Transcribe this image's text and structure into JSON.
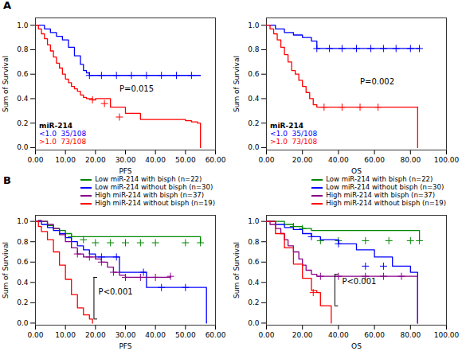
{
  "chart_data": [
    {
      "type": "line",
      "title": "A",
      "xlabel": "PFS",
      "ylabel": "Sum of Survival",
      "xlim": [
        0,
        60
      ],
      "ylim": [
        -0.02,
        1.06
      ],
      "xticks": [
        {
          "value": 0,
          "label": "0.00"
        },
        {
          "value": 10,
          "label": "10.00"
        },
        {
          "value": 20,
          "label": "20.00"
        },
        {
          "value": 30,
          "label": "30.00"
        },
        {
          "value": 40,
          "label": "40.00"
        },
        {
          "value": 50,
          "label": "50.00"
        },
        {
          "value": 60,
          "label": "60.00"
        }
      ],
      "yticks": [
        {
          "value": 0.0,
          "label": "0.0"
        },
        0.2,
        0.4,
        0.6,
        0.8,
        {
          "value": 1.0,
          "label": "1.0"
        }
      ],
      "line_style": "step",
      "legend": "lower left",
      "legend_title": "miR-214",
      "annotations": [
        {
          "text": "P=0.015",
          "x": 28,
          "y": 0.46
        }
      ],
      "series": [
        {
          "name": "<1.0  35/108",
          "color": "#0000ff",
          "marker": "plus",
          "x": [
            0,
            3,
            5,
            7,
            9,
            11,
            13,
            15,
            16,
            17,
            18,
            55
          ],
          "values": [
            1.0,
            0.97,
            0.94,
            0.91,
            0.88,
            0.82,
            0.75,
            0.68,
            0.63,
            0.61,
            0.59,
            0.59
          ],
          "censor_x": [
            18,
            22,
            27,
            32,
            37,
            42,
            47,
            52
          ],
          "censor_y": [
            0.59,
            0.59,
            0.59,
            0.59,
            0.59,
            0.59,
            0.59,
            0.59
          ]
        },
        {
          "name": ">1.0  73/108",
          "color": "#ff0000",
          "marker": "plus",
          "x": [
            0,
            1,
            2,
            3,
            4,
            5,
            6,
            7,
            8,
            9,
            10,
            11,
            12,
            13,
            14,
            15,
            16,
            17,
            18,
            19,
            20,
            25,
            30,
            35,
            40,
            50,
            52,
            54,
            55
          ],
          "values": [
            1.0,
            0.97,
            0.93,
            0.89,
            0.84,
            0.79,
            0.74,
            0.69,
            0.65,
            0.6,
            0.56,
            0.53,
            0.5,
            0.48,
            0.46,
            0.43,
            0.41,
            0.4,
            0.4,
            0.39,
            0.4,
            0.33,
            0.28,
            0.23,
            0.23,
            0.22,
            0.21,
            0.2,
            0.0
          ],
          "censor_x": [
            19,
            23,
            28
          ],
          "censor_y": [
            0.39,
            0.36,
            0.25
          ]
        }
      ]
    },
    {
      "type": "line",
      "xlabel": "OS",
      "ylabel": "Sum of Survival",
      "xlim": [
        0,
        100
      ],
      "ylim": [
        -0.02,
        1.06
      ],
      "xticks": [
        {
          "value": 0,
          "label": "0.00"
        },
        {
          "value": 20,
          "label": "20.00"
        },
        {
          "value": 40,
          "label": "40.00"
        },
        {
          "value": 60,
          "label": "60.00"
        },
        {
          "value": 80,
          "label": "80.00"
        },
        {
          "value": 100,
          "label": "100.00"
        }
      ],
      "yticks": [
        {
          "value": 0.0,
          "label": "0.0"
        },
        0.2,
        0.4,
        0.6,
        0.8,
        {
          "value": 1.0,
          "label": "1.0"
        }
      ],
      "line_style": "step",
      "legend": "lower left",
      "legend_title": "miR-214",
      "annotations": [
        {
          "text": "P=0.002",
          "x": 52,
          "y": 0.52
        }
      ],
      "series": [
        {
          "name": "<1.0  35/108",
          "color": "#0000ff",
          "marker": "plus",
          "x": [
            0,
            5,
            10,
            15,
            20,
            25,
            28,
            85
          ],
          "values": [
            1.0,
            0.97,
            0.94,
            0.92,
            0.9,
            0.87,
            0.81,
            0.81
          ],
          "censor_x": [
            28,
            35,
            42,
            50,
            58,
            65,
            72,
            80,
            85
          ],
          "censor_y": [
            0.81,
            0.81,
            0.81,
            0.81,
            0.81,
            0.81,
            0.81,
            0.81,
            0.81
          ]
        },
        {
          "name": ">1.0  73/108",
          "color": "#ff0000",
          "marker": "plus",
          "x": [
            0,
            2,
            4,
            6,
            8,
            10,
            12,
            14,
            16,
            18,
            20,
            22,
            24,
            26,
            28,
            30,
            83,
            84
          ],
          "values": [
            1.0,
            0.97,
            0.93,
            0.88,
            0.82,
            0.76,
            0.7,
            0.63,
            0.6,
            0.55,
            0.5,
            0.45,
            0.4,
            0.35,
            0.33,
            0.33,
            0.33,
            0.0
          ],
          "censor_x": [
            32,
            42,
            52,
            62
          ],
          "censor_y": [
            0.33,
            0.33,
            0.33,
            0.33
          ]
        }
      ]
    },
    {
      "type": "line",
      "title": "B",
      "xlabel": "PFS",
      "ylabel": "Sum of Survival",
      "xlim": [
        0,
        60
      ],
      "ylim": [
        -0.02,
        1.06
      ],
      "xticks": [
        {
          "value": 0,
          "label": "0.00"
        },
        {
          "value": 10,
          "label": "10.00"
        },
        {
          "value": 20,
          "label": "20.00"
        },
        {
          "value": 30,
          "label": "30.00"
        },
        {
          "value": 40,
          "label": "40.00"
        },
        {
          "value": 50,
          "label": "50.00"
        },
        {
          "value": 60,
          "label": "60.00"
        }
      ],
      "yticks": [
        {
          "value": 0.0,
          "label": "0.0"
        },
        0.2,
        0.4,
        0.6,
        0.8,
        {
          "value": 1.0,
          "label": "1.0"
        }
      ],
      "line_style": "step",
      "legend": "upper right",
      "annotations": [
        {
          "text": "P<0.001",
          "x": 21,
          "y": 0.28
        }
      ],
      "bracket": {
        "x": 19.5,
        "y1": 0.04,
        "y2": 0.45
      },
      "series": [
        {
          "name": "Low miR-214 with bisph (n=22)",
          "color": "#008800",
          "marker": "plus",
          "x": [
            0,
            2,
            4,
            6,
            8,
            10,
            12,
            55
          ],
          "values": [
            1.0,
            1.0,
            0.96,
            0.93,
            0.91,
            0.88,
            0.85,
            0.79
          ],
          "censor_x": [
            12,
            16,
            20,
            25,
            30,
            35,
            40,
            50,
            55
          ],
          "censor_y": [
            0.85,
            0.82,
            0.79,
            0.79,
            0.79,
            0.79,
            0.79,
            0.79,
            0.79
          ]
        },
        {
          "name": "Low miR-214 without bisph (n=30)",
          "color": "#0000ff",
          "marker": "plus",
          "x": [
            0,
            2,
            4,
            6,
            8,
            10,
            12,
            14,
            16,
            18,
            20,
            22,
            27,
            28,
            36,
            37,
            50,
            56,
            57
          ],
          "values": [
            1.0,
            0.97,
            0.94,
            0.91,
            0.88,
            0.84,
            0.8,
            0.76,
            0.72,
            0.68,
            0.65,
            0.65,
            0.65,
            0.5,
            0.5,
            0.35,
            0.35,
            0.35,
            0.0
          ],
          "censor_x": [
            22,
            27,
            36,
            42,
            50
          ],
          "censor_y": [
            0.65,
            0.65,
            0.5,
            0.35,
            0.35
          ]
        },
        {
          "name": "High miR-214 with bisph (n=37)",
          "color": "#880088",
          "marker": "plus",
          "x": [
            0,
            1,
            2,
            4,
            6,
            8,
            10,
            12,
            14,
            16,
            18,
            20,
            22,
            24,
            26,
            28,
            30,
            40,
            44,
            45
          ],
          "values": [
            1.0,
            1.01,
            1.0,
            0.97,
            0.93,
            0.87,
            0.8,
            0.74,
            0.68,
            0.65,
            0.65,
            0.63,
            0.6,
            0.55,
            0.5,
            0.47,
            0.45,
            0.45,
            0.45,
            0.46
          ],
          "censor_x": [
            14,
            18,
            22,
            26,
            30,
            35,
            40,
            45
          ],
          "censor_y": [
            0.68,
            0.65,
            0.6,
            0.5,
            0.45,
            0.45,
            0.45,
            0.46
          ]
        },
        {
          "name": "High miR-214 without bisph (n=19)",
          "color": "#ff0000",
          "marker": "plus",
          "x": [
            0,
            1,
            2,
            4,
            6,
            8,
            10,
            12,
            14,
            16,
            18,
            19
          ],
          "values": [
            1.0,
            0.95,
            0.9,
            0.82,
            0.7,
            0.57,
            0.43,
            0.28,
            0.15,
            0.08,
            0.04,
            0.0
          ],
          "censor_x": [],
          "censor_y": []
        }
      ]
    },
    {
      "type": "line",
      "xlabel": "OS",
      "ylabel": "Sum of Survival",
      "xlim": [
        0,
        100
      ],
      "ylim": [
        -0.02,
        1.06
      ],
      "xticks": [
        {
          "value": 0,
          "label": "0.00"
        },
        {
          "value": 20,
          "label": "20.00"
        },
        {
          "value": 40,
          "label": "40.00"
        },
        {
          "value": 60,
          "label": "60.00"
        },
        {
          "value": 80,
          "label": "80.00"
        },
        {
          "value": 100,
          "label": "100.00"
        }
      ],
      "yticks": [
        {
          "value": 0.0,
          "label": "0.0"
        },
        0.2,
        0.4,
        0.6,
        0.8,
        {
          "value": 1.0,
          "label": "1.0"
        }
      ],
      "line_style": "step",
      "legend": "upper right",
      "annotations": [
        {
          "text": "P<0.001",
          "x": 42,
          "y": 0.38
        }
      ],
      "bracket": {
        "x": 38,
        "y1": 0.17,
        "y2": 0.48
      },
      "series": [
        {
          "name": "Low miR-214 with bisph (n=22)",
          "color": "#008800",
          "marker": "plus",
          "x": [
            0,
            5,
            10,
            15,
            20,
            25,
            85
          ],
          "values": [
            1.0,
            1.0,
            0.97,
            0.95,
            0.93,
            0.91,
            0.81
          ],
          "censor_x": [
            15,
            20,
            30,
            40,
            55,
            68,
            80,
            85
          ],
          "censor_y": [
            0.95,
            0.93,
            0.81,
            0.81,
            0.81,
            0.81,
            0.81,
            0.81
          ]
        },
        {
          "name": "Low miR-214 without bisph (n=30)",
          "color": "#0000ff",
          "marker": "plus",
          "x": [
            0,
            5,
            10,
            15,
            20,
            25,
            30,
            40,
            50,
            60,
            70,
            80,
            83,
            84
          ],
          "values": [
            1.0,
            0.97,
            0.94,
            0.92,
            0.88,
            0.85,
            0.82,
            0.78,
            0.72,
            0.65,
            0.56,
            0.5,
            0.5,
            0.0
          ],
          "censor_x": [
            25,
            40,
            55,
            65
          ],
          "censor_y": [
            0.85,
            0.78,
            0.56,
            0.56
          ]
        },
        {
          "name": "High miR-214 with bisph (n=37)",
          "color": "#880088",
          "marker": "plus",
          "x": [
            0,
            2,
            5,
            8,
            10,
            12,
            15,
            18,
            20,
            22,
            25,
            28,
            30,
            83,
            84
          ],
          "values": [
            1.0,
            0.97,
            0.93,
            0.88,
            0.82,
            0.76,
            0.7,
            0.63,
            0.57,
            0.52,
            0.48,
            0.46,
            0.46,
            0.46,
            0.0
          ],
          "censor_x": [
            30,
            40,
            55,
            65,
            75
          ],
          "censor_y": [
            0.46,
            0.46,
            0.46,
            0.46,
            0.46
          ]
        },
        {
          "name": "High miR-214 without bisph (n=19)",
          "color": "#ff0000",
          "marker": "plus",
          "x": [
            0,
            5,
            10,
            15,
            20,
            25,
            28,
            30,
            35,
            36
          ],
          "values": [
            1.0,
            0.88,
            0.74,
            0.58,
            0.44,
            0.32,
            0.3,
            0.17,
            0.17,
            0.0
          ],
          "censor_x": [
            26
          ],
          "censor_y": [
            0.3
          ]
        }
      ]
    }
  ]
}
